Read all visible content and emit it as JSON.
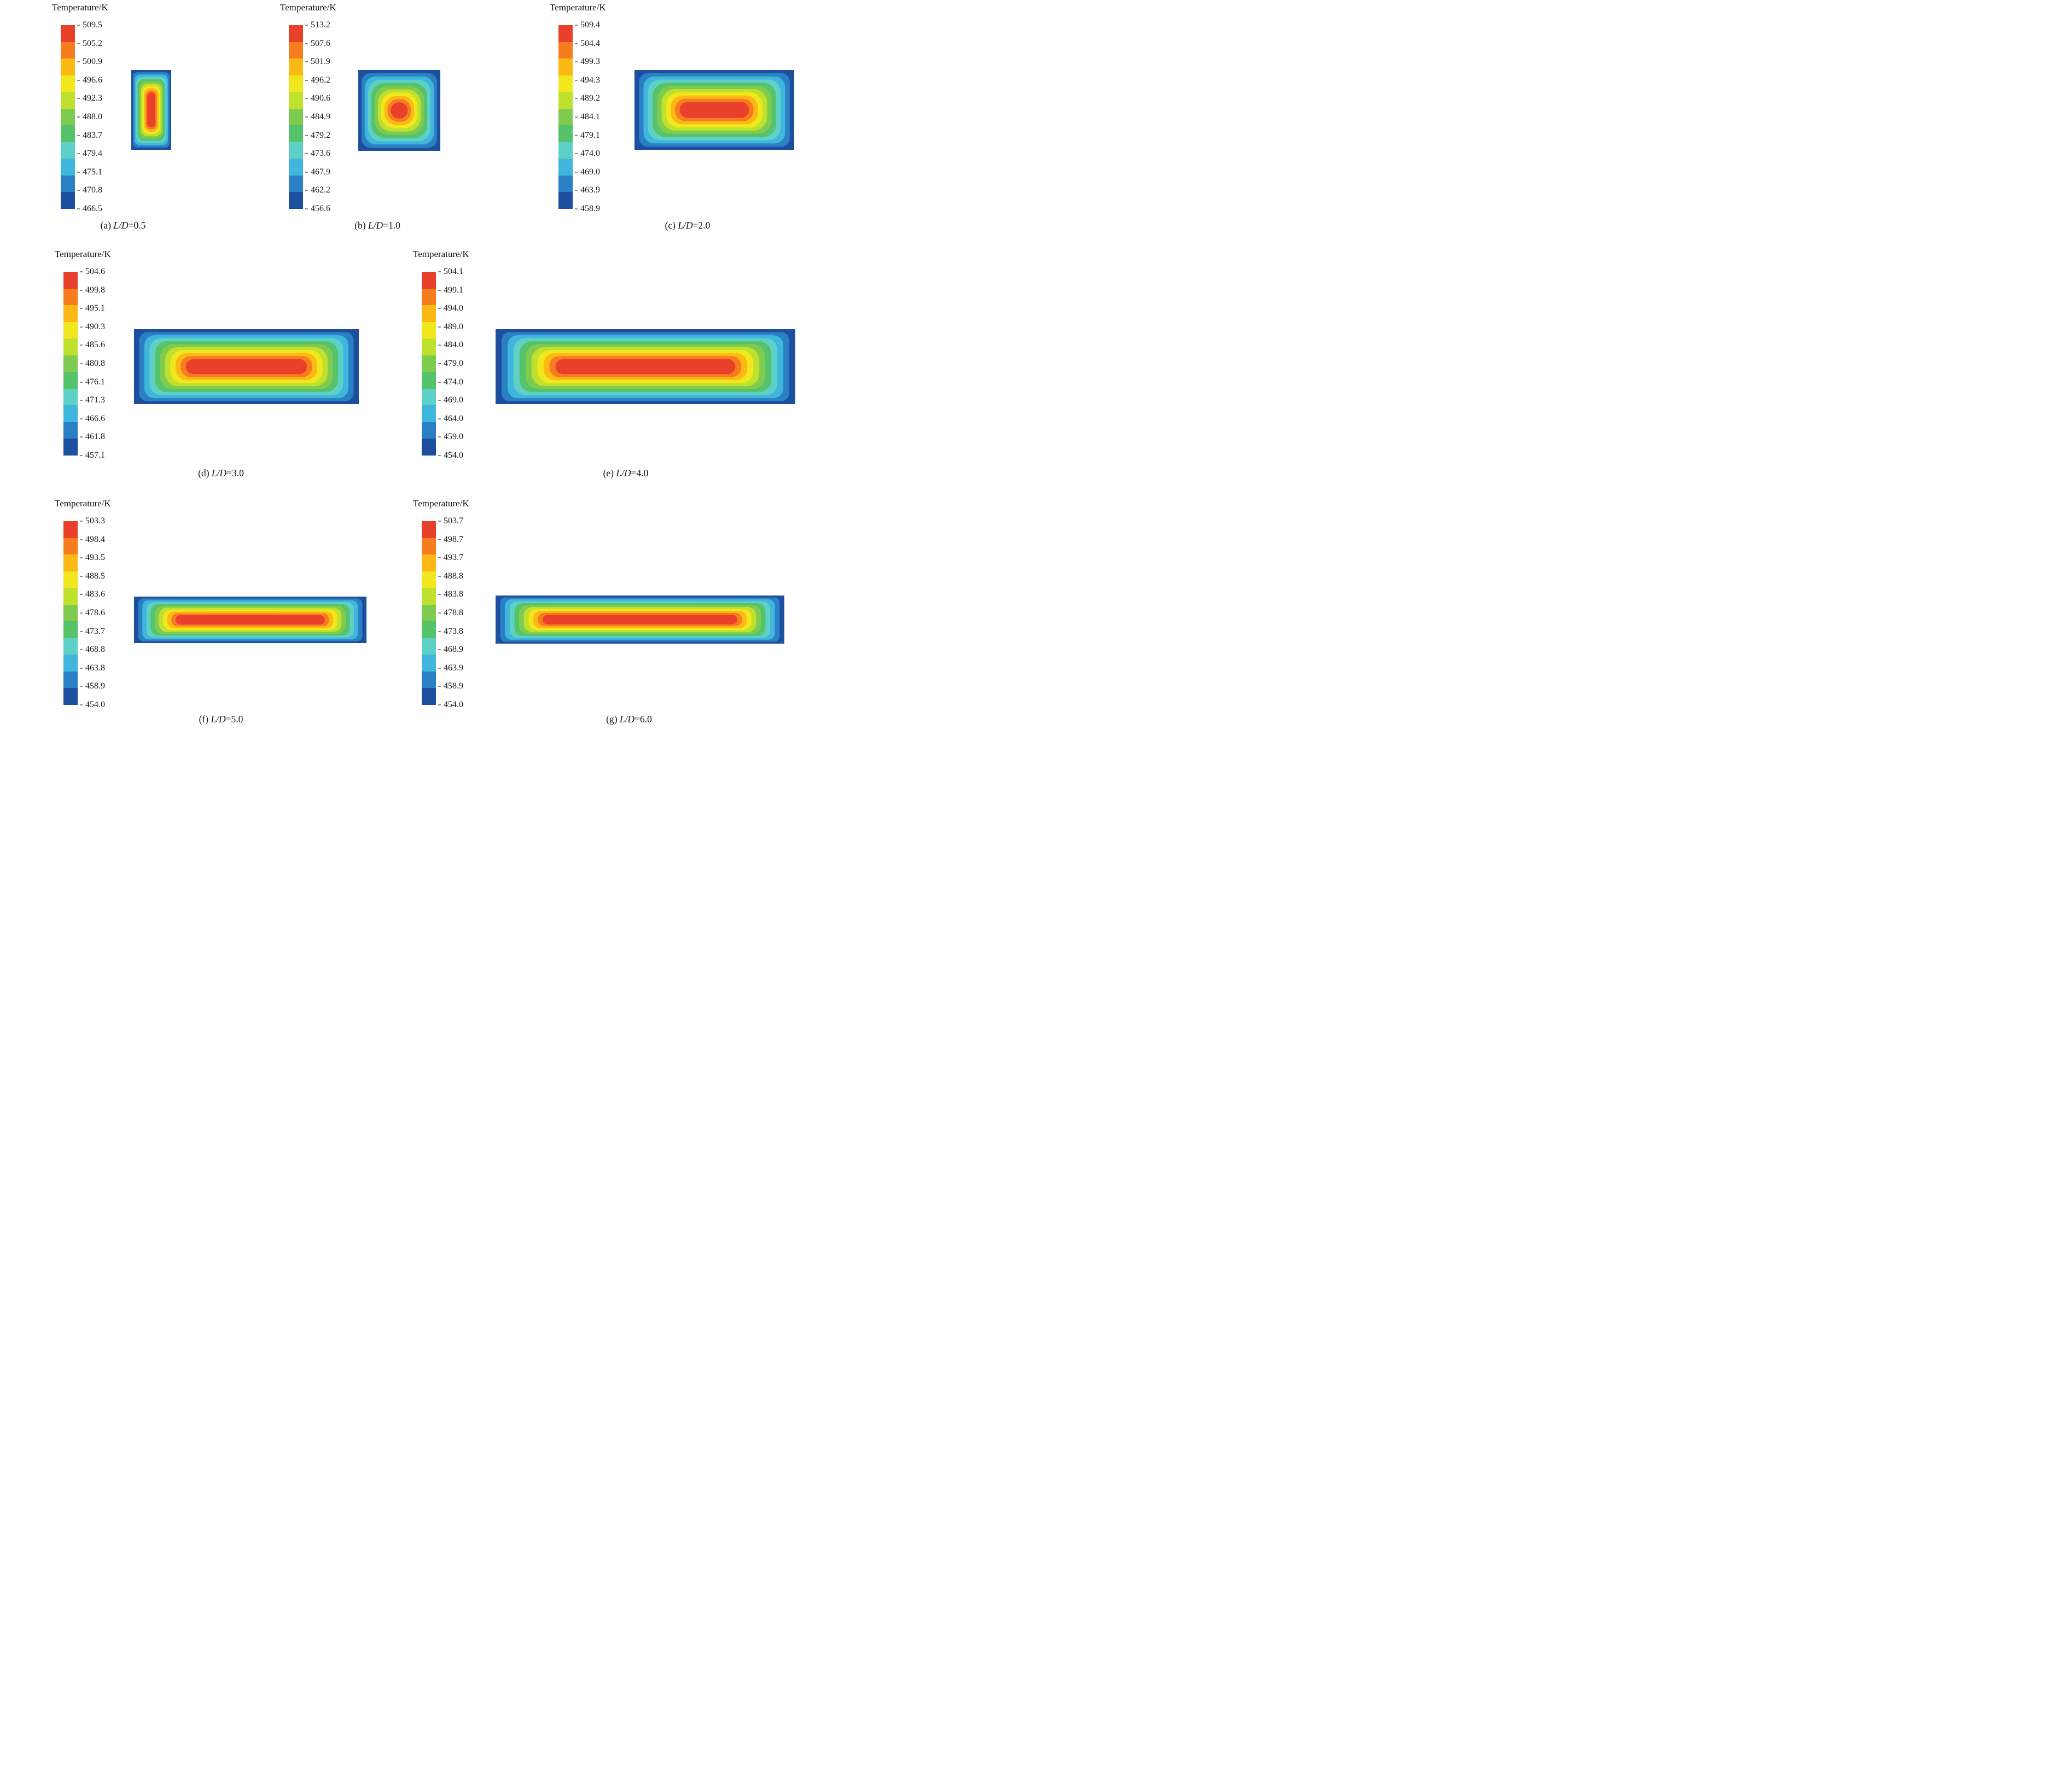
{
  "colors": {
    "scale_top_to_bottom": [
      "#e8402a",
      "#f57d20",
      "#fcb815",
      "#f0e81d",
      "#bfe12e",
      "#7fcb4f",
      "#55c36a",
      "#5fd0c8",
      "#3fb6dc",
      "#2b7fc4",
      "#1d4f9f"
    ],
    "contour_min_color": "#1d4f9f",
    "contour_max_color": "#e8402a"
  },
  "panels": [
    {
      "letter": "a",
      "legend_title": "Temperature/K",
      "ticks": [
        "509.5",
        "505.2",
        "500.9",
        "496.6",
        "492.3",
        "488.0",
        "483.7",
        "479.4",
        "475.1",
        "470.8",
        "466.5"
      ],
      "caption": {
        "prefix": "(a) ",
        "italic": "L/D",
        "suffix": "=0.5"
      }
    },
    {
      "letter": "b",
      "legend_title": "Temperature/K",
      "ticks": [
        "513.2",
        "507.6",
        "501.9",
        "496.2",
        "490.6",
        "484.9",
        "479.2",
        "473.6",
        "467.9",
        "462.2",
        "456.6"
      ],
      "caption": {
        "prefix": "(b) ",
        "italic": "L/D",
        "suffix": "=1.0"
      }
    },
    {
      "letter": "c",
      "legend_title": "Temperature/K",
      "ticks": [
        "509.4",
        "504.4",
        "499.3",
        "494.3",
        "489.2",
        "484.1",
        "479.1",
        "474.0",
        "469.0",
        "463.9",
        "458.9"
      ],
      "caption": {
        "prefix": "(c) ",
        "italic": "L/D",
        "suffix": "=2.0"
      }
    },
    {
      "letter": "d",
      "legend_title": "Temperature/K",
      "ticks": [
        "504.6",
        "499.8",
        "495.1",
        "490.3",
        "485.6",
        "480.8",
        "476.1",
        "471.3",
        "466.6",
        "461.8",
        "457.1"
      ],
      "caption": {
        "prefix": "(d) ",
        "italic": "L/D",
        "suffix": "=3.0"
      }
    },
    {
      "letter": "e",
      "legend_title": "Temperature/K",
      "ticks": [
        "504.1",
        "499.1",
        "494.0",
        "489.0",
        "484.0",
        "479.0",
        "474.0",
        "469.0",
        "464.0",
        "459.0",
        "454.0"
      ],
      "caption": {
        "prefix": "(e) ",
        "italic": "L/D",
        "suffix": "=4.0"
      }
    },
    {
      "letter": "f",
      "legend_title": "Temperature/K",
      "ticks": [
        "503.3",
        "498.4",
        "493.5",
        "488.5",
        "483.6",
        "478.6",
        "473.7",
        "468.8",
        "463.8",
        "458.9",
        "454.0"
      ],
      "caption": {
        "prefix": "(f) ",
        "italic": "L/D",
        "suffix": "=5.0"
      }
    },
    {
      "letter": "g",
      "legend_title": "Temperature/K",
      "ticks": [
        "503.7",
        "498.7",
        "493.7",
        "488.8",
        "483.8",
        "478.8",
        "473.8",
        "468.9",
        "463.9",
        "458.9",
        "454.0"
      ],
      "caption": {
        "prefix": "(g) ",
        "italic": "L/D",
        "suffix": "=6.0"
      }
    }
  ],
  "chart_data": [
    {
      "type": "heatmap",
      "panel": "a",
      "title": "(a) L/D=0.5",
      "L_over_D": 0.5,
      "legend_title": "Temperature/K",
      "units": "K",
      "t_max": 509.5,
      "t_min": 466.5,
      "temperature_levels_K": [
        509.5,
        505.2,
        500.9,
        496.6,
        492.3,
        488.0,
        483.7,
        479.4,
        475.1,
        470.8,
        466.5
      ],
      "pattern": "concentric contour bands; maximum temperature at center, minimum at walls and corners",
      "domain_aspect_w_over_h": 0.5
    },
    {
      "type": "heatmap",
      "panel": "b",
      "title": "(b) L/D=1.0",
      "L_over_D": 1.0,
      "legend_title": "Temperature/K",
      "units": "K",
      "t_max": 513.2,
      "t_min": 456.6,
      "temperature_levels_K": [
        513.2,
        507.6,
        501.9,
        496.2,
        490.6,
        484.9,
        479.2,
        473.6,
        467.9,
        462.2,
        456.6
      ],
      "pattern": "concentric contour bands; maximum temperature at center, minimum at walls and corners",
      "domain_aspect_w_over_h": 1.0
    },
    {
      "type": "heatmap",
      "panel": "c",
      "title": "(c) L/D=2.0",
      "L_over_D": 2.0,
      "legend_title": "Temperature/K",
      "units": "K",
      "t_max": 509.4,
      "t_min": 458.9,
      "temperature_levels_K": [
        509.4,
        504.4,
        499.3,
        494.3,
        489.2,
        484.1,
        479.1,
        474.0,
        469.0,
        463.9,
        458.9
      ],
      "pattern": "elongated concentric contour bands; hot core at center, coldest at corners",
      "domain_aspect_w_over_h": 2.0
    },
    {
      "type": "heatmap",
      "panel": "d",
      "title": "(d) L/D=3.0",
      "L_over_D": 3.0,
      "legend_title": "Temperature/K",
      "units": "K",
      "t_max": 504.6,
      "t_min": 457.1,
      "temperature_levels_K": [
        504.6,
        499.8,
        495.1,
        490.3,
        485.6,
        480.8,
        476.1,
        471.3,
        466.6,
        461.8,
        457.1
      ],
      "pattern": "elongated concentric contour bands; hot core at center, coldest at corners",
      "domain_aspect_w_over_h": 3.0
    },
    {
      "type": "heatmap",
      "panel": "e",
      "title": "(e) L/D=4.0",
      "L_over_D": 4.0,
      "legend_title": "Temperature/K",
      "units": "K",
      "t_max": 504.1,
      "t_min": 454.0,
      "temperature_levels_K": [
        504.1,
        499.1,
        494.0,
        489.0,
        484.0,
        479.0,
        474.0,
        469.0,
        464.0,
        459.0,
        454.0
      ],
      "pattern": "long capsule-shaped hot core at center, coldest at corners",
      "domain_aspect_w_over_h": 4.0
    },
    {
      "type": "heatmap",
      "panel": "f",
      "title": "(f) L/D=5.0",
      "L_over_D": 5.0,
      "legend_title": "Temperature/K",
      "units": "K",
      "t_max": 503.3,
      "t_min": 454.0,
      "temperature_levels_K": [
        503.3,
        498.4,
        493.5,
        488.5,
        483.6,
        478.6,
        473.7,
        468.8,
        463.8,
        458.9,
        454.0
      ],
      "pattern": "long capsule-shaped hot core at center, coldest at corners",
      "domain_aspect_w_over_h": 5.0
    },
    {
      "type": "heatmap",
      "panel": "g",
      "title": "(g) L/D=6.0",
      "L_over_D": 6.0,
      "legend_title": "Temperature/K",
      "units": "K",
      "t_max": 503.7,
      "t_min": 454.0,
      "temperature_levels_K": [
        503.7,
        498.7,
        493.7,
        488.8,
        483.8,
        478.8,
        473.8,
        468.9,
        463.9,
        458.9,
        454.0
      ],
      "pattern": "long capsule-shaped hot core at center, coldest at corners",
      "domain_aspect_w_over_h": 6.0
    }
  ]
}
